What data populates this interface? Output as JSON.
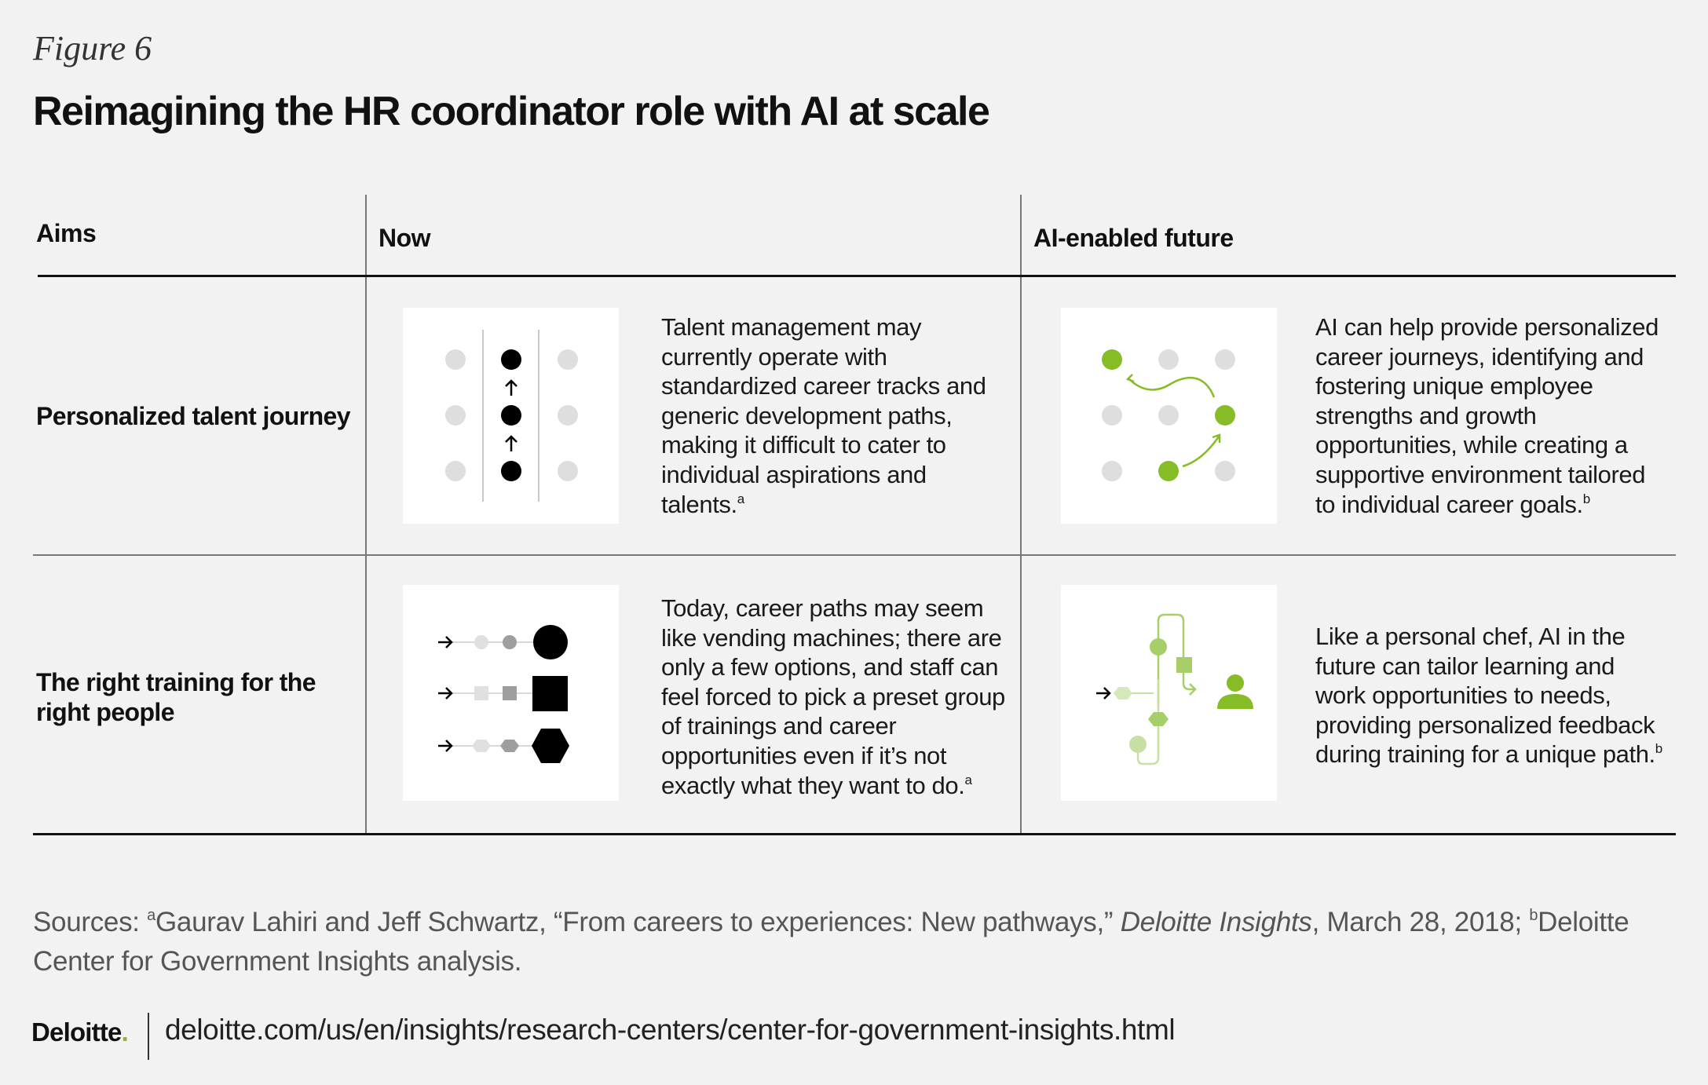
{
  "figure_label": "Figure 6",
  "title": "Reimagining the HR coordinator role with AI at scale",
  "headers": {
    "aims": "Aims",
    "now": "Now",
    "future": "AI-enabled future"
  },
  "rows": [
    {
      "aim": "Personalized talent journey",
      "now_text": "Talent management may currently operate with standardized career tracks and generic development paths, making it difficult to cater to individual aspirations and talents.",
      "now_note": "a",
      "future_text": "AI can help provide personalized career journeys, identifying and fostering unique employee strengths and growth opportunities, while creating a supportive environment tailored to individual career goals.",
      "future_note": "b"
    },
    {
      "aim": "The right training for the right people",
      "now_text": "Today, career paths may seem like vending machines; there are only a few options, and staff can feel forced to pick a preset group of trainings and career opportunities even if it’s not exactly what they want to do.",
      "now_note": "a",
      "future_text": "Like a personal chef, AI in the future can tailor learning and work opportunities to needs, providing personalized feedback during training for a unique path.",
      "future_note": "b"
    }
  ],
  "sources": {
    "prefix": "Sources: ",
    "note_a": "a",
    "text_a": "Gaurav Lahiri and Jeff Schwartz, “From careers to experiences: New pathways,” ",
    "publication": "Deloitte Insights",
    "text_a_end": ", March 28, 2018; ",
    "note_b": "b",
    "text_b": "Deloitte Center for Government Insights analysis."
  },
  "footer": {
    "logo": "Deloitte",
    "logo_dot": ".",
    "url": "deloitte.com/us/en/insights/research-centers/center-for-government-insights.html"
  },
  "colors": {
    "accent_green": "#86bc25",
    "light_green": "#c8dfa3",
    "mid_green": "#a6cf6a",
    "dot_gray": "#dedede",
    "black": "#000000"
  }
}
